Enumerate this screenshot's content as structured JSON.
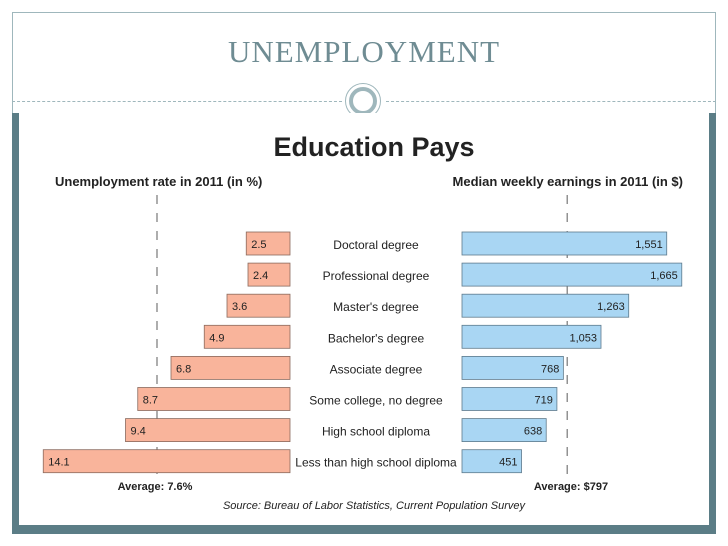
{
  "slide": {
    "title": "UNEMPLOYMENT"
  },
  "chart_data": {
    "type": "bar",
    "title": "Education Pays",
    "categories": [
      "Doctoral degree",
      "Professional degree",
      "Master's degree",
      "Bachelor's degree",
      "Associate degree",
      "Some college, no degree",
      "High school diploma",
      "Less than high school diploma"
    ],
    "series": [
      {
        "name": "Unemployment rate in 2011 (in %)",
        "values": [
          2.5,
          2.4,
          3.6,
          4.9,
          6.8,
          8.7,
          9.4,
          14.1
        ],
        "value_labels": [
          "2.5",
          "2.4",
          "3.6",
          "4.9",
          "6.8",
          "8.7",
          "9.4",
          "14.1"
        ],
        "average": 7.6,
        "average_label": "Average: 7.6%",
        "color": "#f9b49b",
        "direction": "left"
      },
      {
        "name": "Median weekly earnings in 2011 (in $)",
        "values": [
          1551,
          1665,
          1263,
          1053,
          768,
          719,
          638,
          451
        ],
        "value_labels": [
          "1,551",
          "1,665",
          "1,263",
          "1,053",
          "768",
          "719",
          "638",
          "451"
        ],
        "average": 797,
        "average_label": "Average: $797",
        "color": "#a9d6f3",
        "direction": "right"
      }
    ],
    "source": "Source: Bureau of Labor Statistics, Current Population Survey"
  }
}
